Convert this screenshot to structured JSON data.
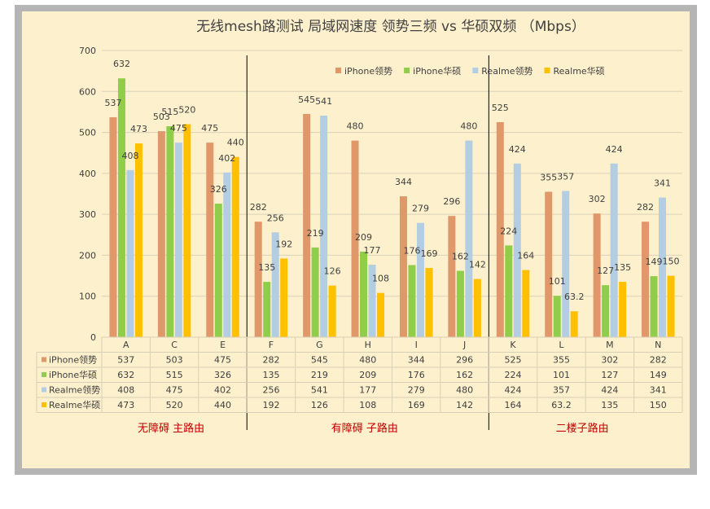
{
  "chart_data": {
    "type": "bar",
    "title": "无线mesh路测试 局域网速度 领势三频 vs 华硕双频 （Mbps）",
    "categories": [
      "A",
      "C",
      "E",
      "F",
      "G",
      "H",
      "I",
      "J",
      "K",
      "L",
      "M",
      "N"
    ],
    "ylim": [
      0,
      700
    ],
    "yticks": [
      0,
      100,
      200,
      300,
      400,
      500,
      600,
      700
    ],
    "grid": true,
    "legend_position": "top-right",
    "data_table": true,
    "series": [
      {
        "name": "iPhone领势",
        "color": "#e0986a",
        "values": [
          537,
          503,
          475,
          282,
          545,
          480,
          344,
          296,
          525,
          355,
          302,
          282
        ]
      },
      {
        "name": "iPhone华硕",
        "color": "#8fcd4a",
        "values": [
          632,
          515,
          326,
          135,
          219,
          209,
          176,
          162,
          224,
          101,
          127,
          149
        ]
      },
      {
        "name": "Realme领势",
        "color": "#b3cde3",
        "values": [
          408,
          475,
          402,
          256,
          541,
          177,
          279,
          480,
          424,
          357,
          424,
          341
        ]
      },
      {
        "name": "Realme华硕",
        "color": "#ffc000",
        "values": [
          473,
          520,
          440,
          192,
          126,
          108,
          169,
          142,
          164,
          63.2,
          135,
          150
        ]
      }
    ],
    "value_labels": [
      [
        "537",
        "503",
        "475",
        "282",
        "545",
        "480",
        "344",
        "296",
        "525",
        "355",
        "302",
        "282"
      ],
      [
        "632",
        "515",
        "326",
        "135",
        "219",
        "209",
        "176",
        "162",
        "224",
        "101",
        "127",
        "149"
      ],
      [
        "408",
        "475",
        "402",
        "256",
        "541",
        "177",
        "279",
        "480",
        "424",
        "357",
        "424",
        "341"
      ],
      [
        "473",
        "520",
        "440",
        "192",
        "126",
        "108",
        "169",
        "142",
        "164",
        "63.2",
        "135",
        "150"
      ]
    ],
    "groups": [
      {
        "label": "无障碍  主路由",
        "categories": [
          "A",
          "C",
          "E"
        ]
      },
      {
        "label": "有障碍  子路由",
        "categories": [
          "F",
          "G",
          "H",
          "I",
          "J"
        ]
      },
      {
        "label": "二楼子路由",
        "categories": [
          "K",
          "L",
          "M",
          "N"
        ]
      }
    ]
  }
}
